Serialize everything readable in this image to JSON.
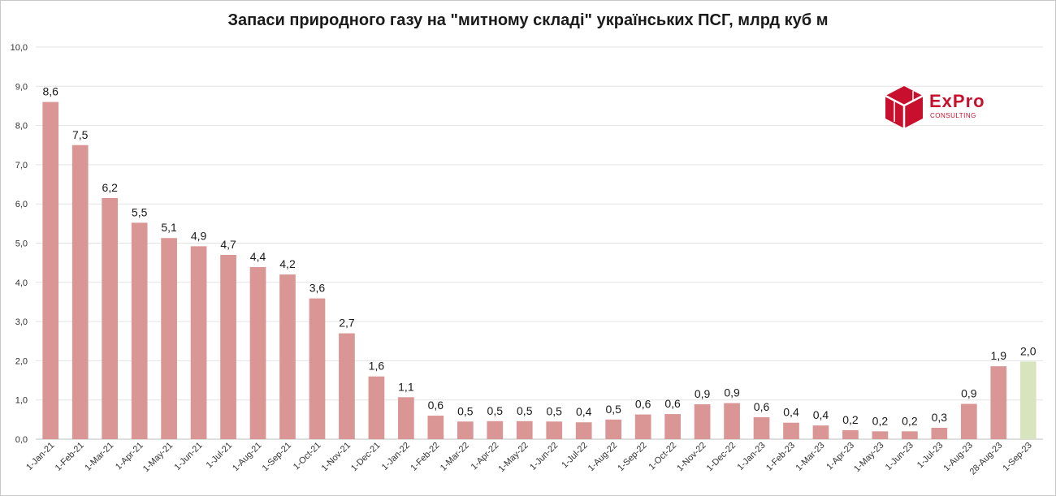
{
  "chart_data": {
    "type": "bar",
    "title": "Запаси природного газу на \"митному складі\" українських ПСГ, млрд куб м",
    "categories": [
      "1-Jan-21",
      "1-Feb-21",
      "1-Mar-21",
      "1-Apr-21",
      "1-May-21",
      "1-Jun-21",
      "1-Jul-21",
      "1-Aug-21",
      "1-Sep-21",
      "1-Oct-21",
      "1-Nov-21",
      "1-Dec-21",
      "1-Jan-22",
      "1-Feb-22",
      "1-Mar-22",
      "1-Apr-22",
      "1-May-22",
      "1-Jun-22",
      "1-Jul-22",
      "1-Aug-22",
      "1-Sep-22",
      "1-Oct-22",
      "1-Nov-22",
      "1-Dec-22",
      "1-Jan-23",
      "1-Feb-23",
      "1-Mar-23",
      "1-Apr-23",
      "1-May-23",
      "1-Jun-23",
      "1-Jul-23",
      "1-Aug-23",
      "28-Aug-23",
      "1-Sep-23"
    ],
    "values": [
      8.6,
      7.5,
      6.15,
      5.52,
      5.13,
      4.92,
      4.7,
      4.39,
      4.2,
      3.59,
      2.7,
      1.6,
      1.07,
      0.6,
      0.45,
      0.46,
      0.46,
      0.45,
      0.43,
      0.5,
      0.63,
      0.64,
      0.89,
      0.92,
      0.56,
      0.42,
      0.35,
      0.23,
      0.2,
      0.2,
      0.29,
      0.9,
      1.86,
      1.98
    ],
    "data_labels": [
      "8,6",
      "7,5",
      "6,2",
      "5,5",
      "5,1",
      "4,9",
      "4,7",
      "4,4",
      "4,2",
      "3,6",
      "2,7",
      "1,6",
      "1,1",
      "0,6",
      "0,5",
      "0,5",
      "0,5",
      "0,5",
      "0,4",
      "0,5",
      "0,6",
      "0,6",
      "0,9",
      "0,9",
      "0,6",
      "0,4",
      "0,4",
      "0,2",
      "0,2",
      "0,2",
      "0,3",
      "0,9",
      "1,9",
      "2,0"
    ],
    "y_ticks": [
      "0,0",
      "1,0",
      "2,0",
      "3,0",
      "4,0",
      "5,0",
      "6,0",
      "7,0",
      "8,0",
      "9,0",
      "10,0"
    ],
    "ylim": [
      0,
      10
    ],
    "grid": true,
    "bar_color": "#d99694",
    "highlight_color": "#d7e4bd",
    "highlight_index": 33,
    "legend": "none"
  },
  "logo": {
    "name": "ExPro",
    "subtitle": "CONSULTING",
    "color": "#c8102e"
  }
}
